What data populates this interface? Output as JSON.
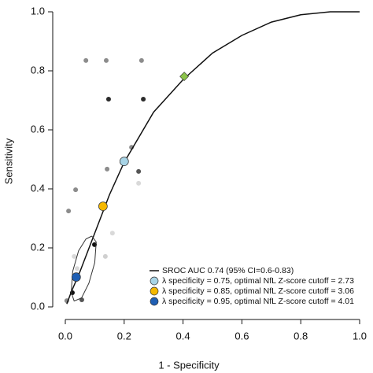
{
  "chart_data": {
    "type": "scatter",
    "x_label": "1 - Specificity",
    "y_label": "Sensitivity",
    "xlim": [
      0,
      1
    ],
    "ylim": [
      0,
      1
    ],
    "xticks": [
      {
        "value": 0,
        "label": "0.0"
      },
      0.2,
      0.4,
      0.6,
      0.8,
      {
        "value": 1,
        "label": "1.0"
      }
    ],
    "yticks": [
      {
        "value": 0,
        "label": "0.0"
      },
      0.2,
      0.4,
      0.6,
      0.8,
      {
        "value": 1,
        "label": "1.0"
      }
    ],
    "legend": "bottomright",
    "series": [
      {
        "kind": "points",
        "marker": "circle",
        "colors": [
          "#8c8c8c",
          "#8c8c8c",
          "#8c8c8c",
          "#2b2b2b",
          "#2b2b2b",
          "#8c8c8c",
          "#8c8c8c",
          "#555555",
          "#d9d9d9",
          "#8c8c8c",
          "#8c8c8c",
          "#d9d9d9",
          "#111111",
          "#d0d0d0",
          "#d9d9d9",
          "#111111",
          "#555555",
          "#8c8c8c",
          "#d9d9d9"
        ],
        "x": [
          0.07,
          0.139,
          0.259,
          0.147,
          0.265,
          0.225,
          0.142,
          0.249,
          0.249,
          0.035,
          0.011,
          0.16,
          0.099,
          0.136,
          0.03,
          0.024,
          0.056,
          0.005,
          0.04
        ],
        "values": [
          0.835,
          0.835,
          0.835,
          0.704,
          0.704,
          0.541,
          0.467,
          0.459,
          0.419,
          0.397,
          0.325,
          0.25,
          0.211,
          0.171,
          0.171,
          0.048,
          0.024,
          0.021,
          0.13
        ]
      },
      {
        "name": "SROC AUC 0.74 (95% CI=0.6-0.83)",
        "kind": "line",
        "color": "#111111",
        "x": [
          0.005,
          0.02,
          0.05,
          0.1,
          0.15,
          0.2,
          0.3,
          0.4,
          0.5,
          0.6,
          0.7,
          0.8,
          0.9,
          1.0
        ],
        "values": [
          0.01,
          0.05,
          0.12,
          0.25,
          0.38,
          0.49,
          0.66,
          0.77,
          0.86,
          0.92,
          0.965,
          0.99,
          1.0,
          1.0
        ]
      },
      {
        "kind": "line",
        "color": "#333333",
        "x": [
          0.09,
          0.105,
          0.1,
          0.08,
          0.055,
          0.03,
          0.02,
          0.025,
          0.045,
          0.07,
          0.09
        ],
        "values": [
          0.24,
          0.22,
          0.15,
          0.08,
          0.03,
          0.02,
          0.05,
          0.12,
          0.19,
          0.23,
          0.24
        ]
      },
      {
        "kind": "points",
        "marker": "diamond",
        "color": "#8bc34a",
        "x": [
          0.404
        ],
        "values": [
          0.781
        ]
      },
      {
        "name": "λ specificity = 0.75, optimal NfL Z-score cutoff = 2.73",
        "kind": "points",
        "marker": "circle",
        "size": "large",
        "color": "#a8d4e6",
        "x": [
          0.2
        ],
        "values": [
          0.493
        ]
      },
      {
        "name": "λ specificity = 0.85, optimal NfL Z-score cutoff = 3.06",
        "kind": "points",
        "marker": "circle",
        "size": "large",
        "color": "#f5b800",
        "x": [
          0.128
        ],
        "values": [
          0.341
        ]
      },
      {
        "name": "λ specificity = 0.95, optimal NfL Z-score cutoff = 4.01",
        "kind": "points",
        "marker": "circle",
        "size": "large",
        "color": "#1f5fb4",
        "x": [
          0.037
        ],
        "values": [
          0.101
        ]
      }
    ]
  }
}
